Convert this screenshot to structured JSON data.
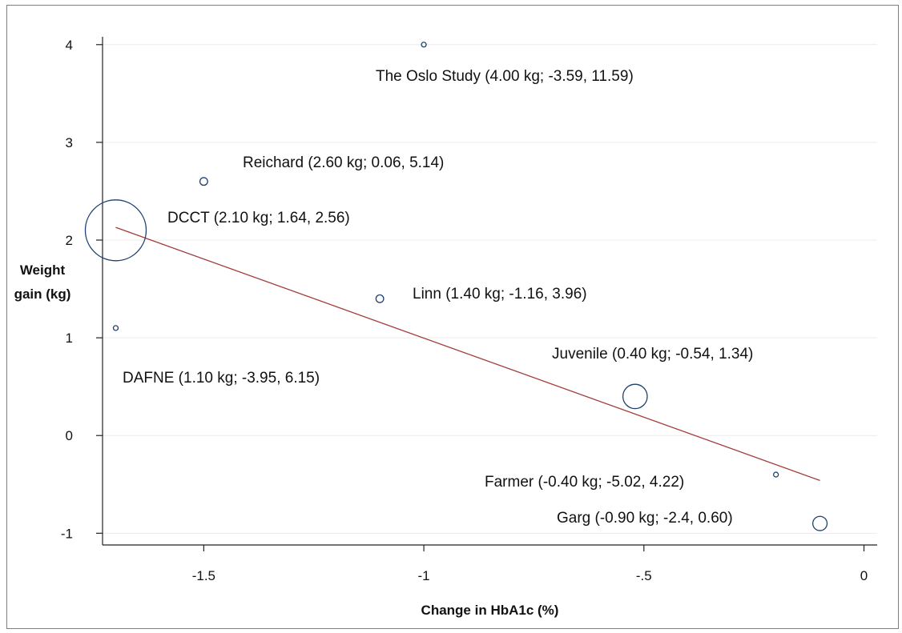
{
  "chart_data": {
    "type": "scatter",
    "title": "",
    "xlabel": "Change in HbA1c (%)",
    "ylabel": "Weight gain (kg)",
    "xlim": [
      -1.73,
      0.03
    ],
    "ylim": [
      -1.12,
      4.08
    ],
    "x_ticks": [
      -1.5,
      -1,
      -0.5,
      0
    ],
    "x_tick_labels": [
      "-1.5",
      "-1",
      "-.5",
      "0"
    ],
    "y_ticks": [
      -1,
      0,
      1,
      2,
      3,
      4
    ],
    "y_tick_labels": [
      "-1",
      "0",
      "1",
      "2",
      "3",
      "4"
    ],
    "grid": "horizontal",
    "marker": "hollow circle sized by study weight",
    "marker_color": "#1f3f6e",
    "fit_line_color": "#a33b3b",
    "points": [
      {
        "study": "The Oslo Study",
        "x": -1.0,
        "y": 4.0,
        "weight": 0.1,
        "label": "The Oslo Study (4.00 kg; -3.59, 11.59)"
      },
      {
        "study": "Reichard",
        "x": -1.5,
        "y": 2.6,
        "weight": 1.6,
        "label": "Reichard (2.60 kg; 0.06, 5.14)"
      },
      {
        "study": "DCCT",
        "x": -1.7,
        "y": 2.1,
        "weight": 100,
        "label": "DCCT (2.10 kg; 1.64, 2.56)"
      },
      {
        "study": "Linn",
        "x": -1.1,
        "y": 1.4,
        "weight": 1.6,
        "label": "Linn (1.40 kg; -1.16, 3.96)"
      },
      {
        "study": "DAFNE",
        "x": -1.7,
        "y": 1.1,
        "weight": 0.5,
        "label": "DAFNE (1.10 kg; -3.95, 6.15)"
      },
      {
        "study": "Juvenile",
        "x": -0.52,
        "y": 0.4,
        "weight": 16,
        "label": "Juvenile (0.40 kg; -0.54, 1.34)"
      },
      {
        "study": "Farmer",
        "x": -0.2,
        "y": -0.4,
        "weight": 0.5,
        "label": "Farmer (-0.40 kg; -5.02, 4.22)"
      },
      {
        "study": "Garg",
        "x": -0.1,
        "y": -0.9,
        "weight": 5.5,
        "label": "Garg (-0.90 kg; -2.4, 0.60)"
      }
    ],
    "fit_line": {
      "x": [
        -1.7,
        -0.1
      ],
      "y": [
        2.13,
        -0.46
      ]
    }
  }
}
